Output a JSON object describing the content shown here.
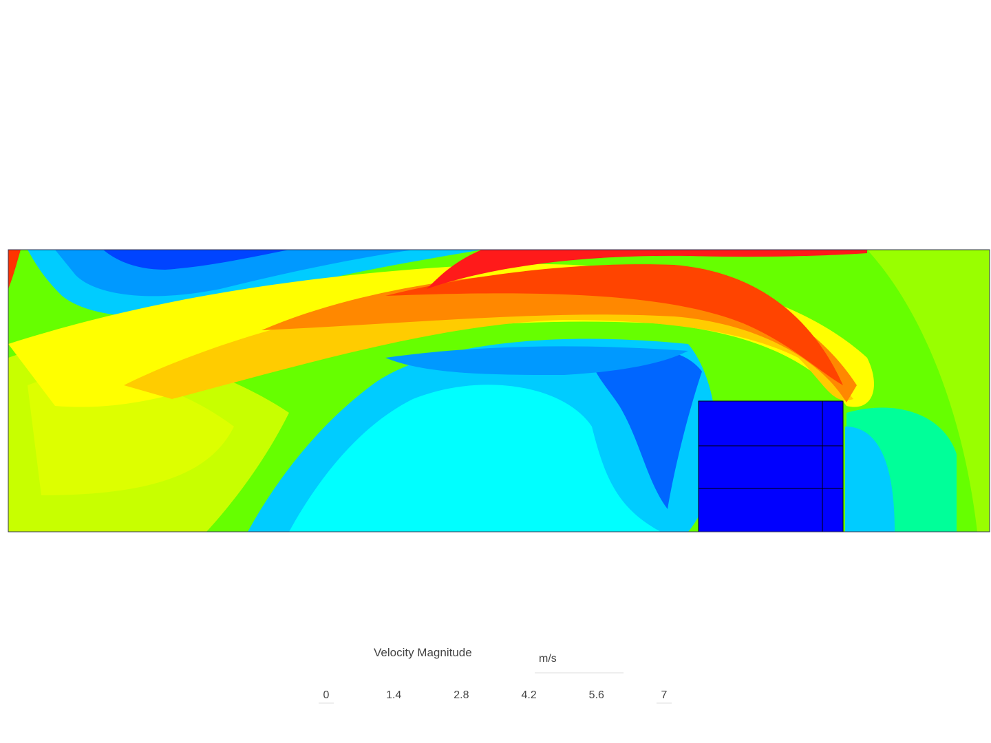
{
  "legend": {
    "title": "Velocity Magnitude",
    "unit": "m/s",
    "ticks": [
      0,
      1.4,
      2.8,
      4.2,
      5.6,
      7
    ]
  }
}
